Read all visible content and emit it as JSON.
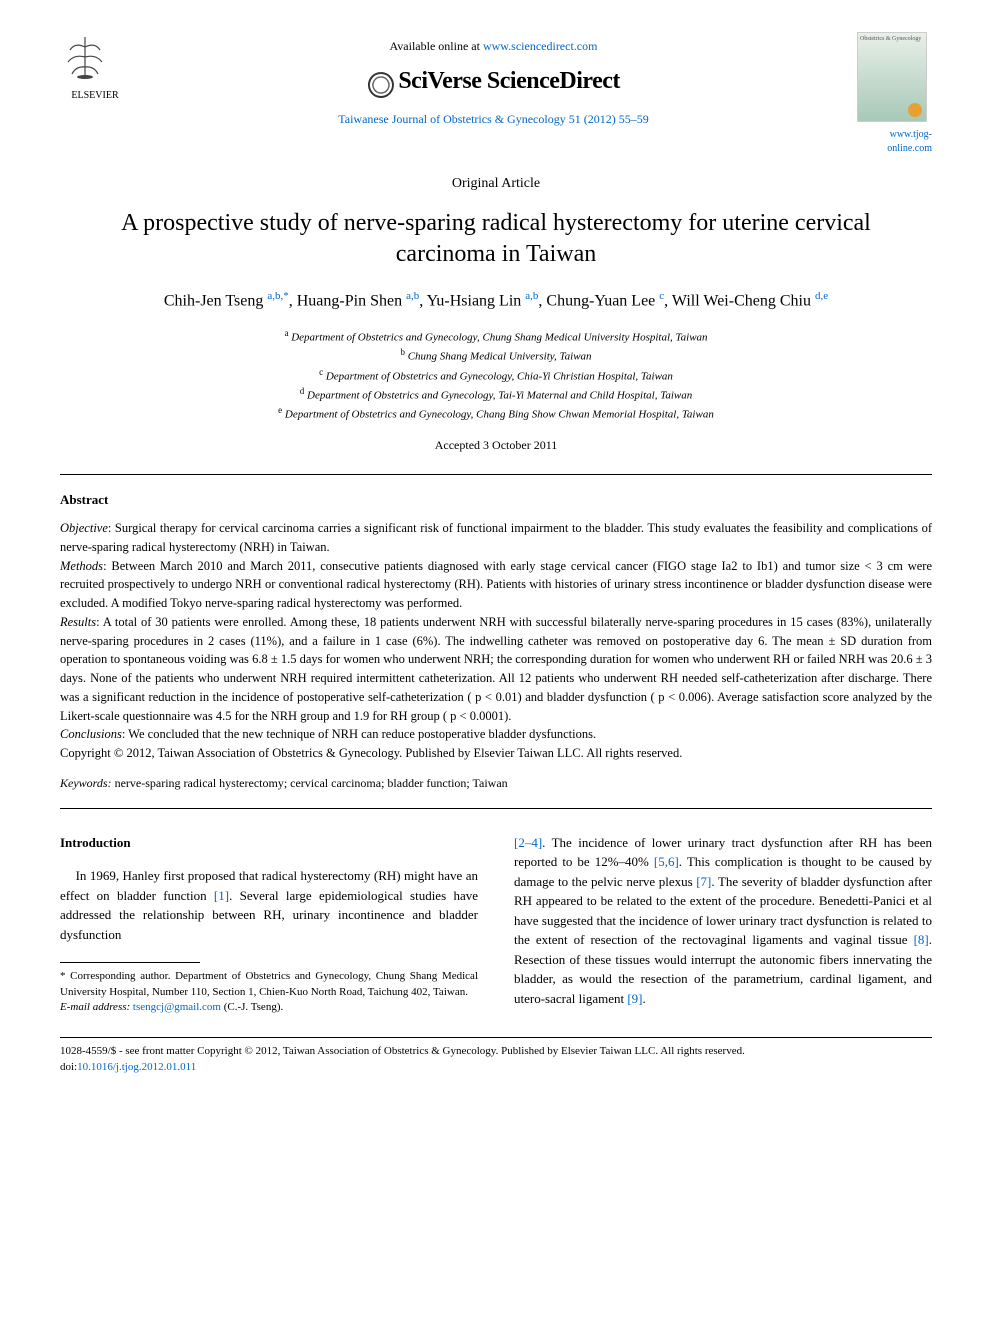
{
  "header": {
    "available_text": "Available online at ",
    "sd_url": "www.sciencedirect.com",
    "sciverse": "SciVerse ScienceDirect",
    "journal_ref": "Taiwanese Journal of Obstetrics & Gynecology 51 (2012) 55–59",
    "elsevier": "ELSEVIER",
    "tjog_url": "www.tjog-online.com",
    "cover_title": "Obstetrics & Gynecology"
  },
  "article": {
    "type": "Original Article",
    "title": "A prospective study of nerve-sparing radical hysterectomy for uterine cervical carcinoma in Taiwan",
    "authors_html": "Chih-Jen Tseng <sup>a,b,*</sup>, Huang-Pin Shen <sup>a,b</sup>, Yu-Hsiang Lin <sup>a,b</sup>, Chung-Yuan Lee <sup>c</sup>, Will Wei-Cheng Chiu <sup>d,e</sup>",
    "affiliations": [
      {
        "sup": "a",
        "text": "Department of Obstetrics and Gynecology, Chung Shang Medical University Hospital, Taiwan"
      },
      {
        "sup": "b",
        "text": "Chung Shang Medical University, Taiwan"
      },
      {
        "sup": "c",
        "text": "Department of Obstetrics and Gynecology, Chia-Yi Christian Hospital, Taiwan"
      },
      {
        "sup": "d",
        "text": "Department of Obstetrics and Gynecology, Tai-Yi Maternal and Child Hospital, Taiwan"
      },
      {
        "sup": "e",
        "text": "Department of Obstetrics and Gynecology, Chang Bing Show Chwan Memorial Hospital, Taiwan"
      }
    ],
    "accepted": "Accepted 3 October 2011"
  },
  "abstract": {
    "label": "Abstract",
    "objective_label": "Objective",
    "objective": ": Surgical therapy for cervical carcinoma carries a significant risk of functional impairment to the bladder. This study evaluates the feasibility and complications of nerve-sparing radical hysterectomy (NRH) in Taiwan.",
    "methods_label": "Methods",
    "methods": ": Between March 2010 and March 2011, consecutive patients diagnosed with early stage cervical cancer (FIGO stage Ia2 to Ib1) and tumor size < 3 cm were recruited prospectively to undergo NRH or conventional radical hysterectomy (RH). Patients with histories of urinary stress incontinence or bladder dysfunction disease were excluded. A modified Tokyo nerve-sparing radical hysterectomy was performed.",
    "results_label": "Results",
    "results": ": A total of 30 patients were enrolled. Among these, 18 patients underwent NRH with successful bilaterally nerve-sparing procedures in 15 cases (83%), unilaterally nerve-sparing procedures in 2 cases (11%), and a failure in 1 case (6%). The indwelling catheter was removed on postoperative day 6. The mean ± SD duration from operation to spontaneous voiding was 6.8 ± 1.5 days for women who underwent NRH; the corresponding duration for women who underwent RH or failed NRH was 20.6 ± 3 days. None of the patients who underwent NRH required intermittent catheterization. All 12 patients who underwent RH needed self-catheterization after discharge. There was a significant reduction in the incidence of postoperative self-catheterization ( p < 0.01) and bladder dysfunction ( p < 0.006). Average satisfaction score analyzed by the Likert-scale questionnaire was 4.5 for the NRH group and 1.9 for RH group ( p < 0.0001).",
    "conclusions_label": "Conclusions",
    "conclusions": ": We concluded that the new technique of NRH can reduce postoperative bladder dysfunctions.",
    "copyright": "Copyright © 2012, Taiwan Association of Obstetrics & Gynecology. Published by Elsevier Taiwan LLC. All rights reserved.",
    "keywords_label": "Keywords:",
    "keywords": " nerve-sparing radical hysterectomy; cervical carcinoma; bladder function; Taiwan"
  },
  "intro": {
    "heading": "Introduction",
    "col1_p1_a": "In 1969, Hanley first proposed that radical hysterectomy (RH) might have an effect on bladder function ",
    "col1_ref1": "[1]",
    "col1_p1_b": ". Several large epidemiological studies have addressed the relationship between RH, urinary incontinence and bladder dysfunction",
    "col2_ref1": "[2–4]",
    "col2_a": ". The incidence of lower urinary tract dysfunction after RH has been reported to be 12%–40% ",
    "col2_ref2": "[5,6]",
    "col2_b": ". This complication is thought to be caused by damage to the pelvic nerve plexus ",
    "col2_ref3": "[7]",
    "col2_c": ". The severity of bladder dysfunction after RH appeared to be related to the extent of the procedure. Benedetti-Panici et al have suggested that the incidence of lower urinary tract dysfunction is related to the extent of resection of the rectovaginal ligaments and vaginal tissue ",
    "col2_ref4": "[8]",
    "col2_d": ". Resection of these tissues would interrupt the autonomic fibers innervating the bladder, as would the resection of the parametrium, cardinal ligament, and utero-sacral ligament ",
    "col2_ref5": "[9]",
    "col2_e": "."
  },
  "footnote": {
    "corresponding": "* Corresponding author. Department of Obstetrics and Gynecology, Chung Shang Medical University Hospital, Number 110, Section 1, Chien-Kuo North Road, Taichung 402, Taiwan.",
    "email_label": "E-mail address: ",
    "email": "tsengcj@gmail.com",
    "email_suffix": " (C.-J. Tseng)."
  },
  "footer": {
    "line1": "1028-4559/$ - see front matter Copyright © 2012, Taiwan Association of Obstetrics & Gynecology. Published by Elsevier Taiwan LLC. All rights reserved.",
    "doi_label": "doi:",
    "doi": "10.1016/j.tjog.2012.01.011"
  },
  "colors": {
    "link": "#0066cc",
    "text": "#000000",
    "background": "#ffffff"
  }
}
